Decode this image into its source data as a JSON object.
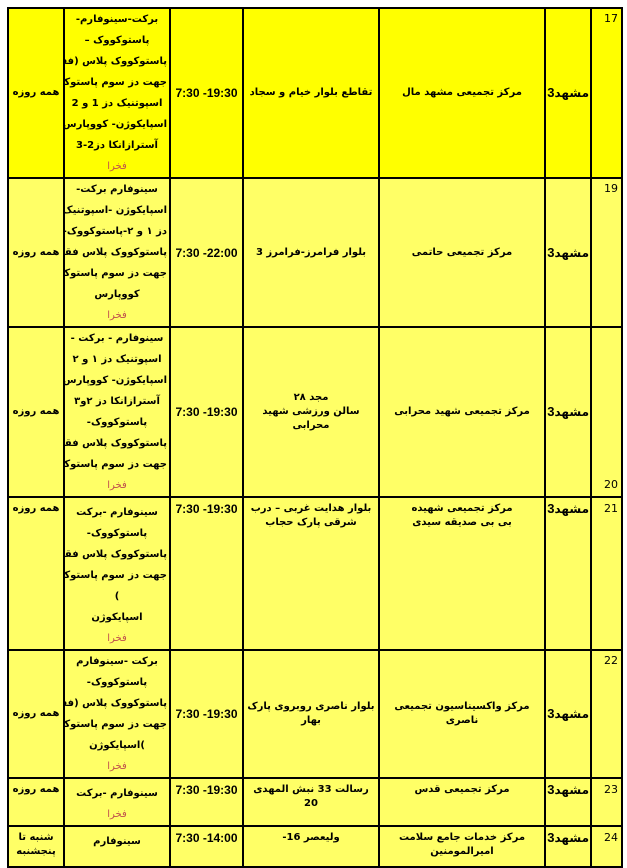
{
  "colors": {
    "header_row_bg": "#ffff00",
    "row_bg": "#ffff66",
    "border": "#000000",
    "highlight_text": "#c0504d"
  },
  "rows": [
    {
      "num": "17",
      "city": "مشهد",
      "city_num": "3",
      "center": [
        "مرکز تجمیعی مشهد مال"
      ],
      "address": [
        "تقاطع بلوار خیام و سجاد"
      ],
      "hours": "7:30 -19:30",
      "vaccines": [
        "برکت-سینوفارم-",
        "پاستوکووک –",
        "پاستوکووک پلاس (فقط",
        "جهت دز سوم پاستوکووک)",
        "اسپوتنیک دز 1 و 2",
        "اسپایکوژن- کووپارس",
        "آسترازانکا دز2-3"
      ],
      "vaccine_note": "فخرا",
      "days": "همه روزه"
    },
    {
      "num": "19",
      "city": "مشهد",
      "city_num": "3",
      "center": [
        "مرکز تجمیعی حاتمی"
      ],
      "address": [
        "بلوار فرامرز-فرامرز 3"
      ],
      "hours": "7:30 -22:00",
      "vaccines": [
        "سینوفارم برکت-",
        "اسپایکوژن -اسپوتنیک",
        "دز ۱ و ۲-پاستوکووک-",
        "پاستوکووک پلاس فقط",
        "جهت دز سوم پاستوکووک",
        "کووپارس"
      ],
      "vaccine_note": "فخرا",
      "days": "همه روزه"
    },
    {
      "num": "20",
      "city": "مشهد",
      "city_num": "3",
      "center": [
        "مرکز تجمیعی شهید محرابی"
      ],
      "address": [
        "مجد ۲۸",
        "سالن ورزشی شهید محرابی"
      ],
      "hours": "7:30 -19:30",
      "vaccines": [
        "سینوفارم - برکت -",
        "اسپوتنیک دز ۱ و ۲",
        "اسپایکوژن- کووپارس",
        "آسترازانکا دز ۲و۳",
        "پاستوکووک-",
        "پاستوکووک پلاس فقط",
        "جهت دز سوم پاستوکووک"
      ],
      "vaccine_note": "فخرا",
      "days": "همه روزه"
    },
    {
      "num": "21",
      "city": "مشهد",
      "city_num": "3",
      "center": [
        "مرکز تجمیعی شهیده",
        "بی بی صدیقه سیدی"
      ],
      "address": [
        "بلوار هدایت غربی – درب",
        "شرقی پارک حجاب"
      ],
      "hours": "7:30 -19:30",
      "vaccines": [
        "سینوفارم -برکت",
        "پاستوکووک-",
        "پاستوکووک پلاس فقط",
        "جهت دز سوم پاستوکووک",
        ")",
        "اسپایکوژن"
      ],
      "vaccine_note": "فخرا",
      "days": "همه روزه"
    },
    {
      "num": "22",
      "city": "مشهد",
      "city_num": "3",
      "center": [
        "مرکز واکسیناسیون تجمیعی ناصری"
      ],
      "address": [
        "بلوار ناصری روبروی پارک",
        "بهار"
      ],
      "hours": "7:30 -19:30",
      "vaccines": [
        "برکت -سینوفارم",
        "پاستوکووک-",
        "پاستوکووک پلاس (فقط",
        "جهت دز سوم پاستوکووک",
        ")اسپایکوژن"
      ],
      "vaccine_note": "فخرا",
      "days": "همه روزه"
    },
    {
      "num": "23",
      "city": "مشهد",
      "city_num": "3",
      "center": [
        "مرکز تجمیعی قدس"
      ],
      "address": [
        "رسالت 33 نبش المهدی 20"
      ],
      "hours": "7:30 -19:30",
      "vaccines": [
        "سینوفارم -برکت"
      ],
      "vaccine_note": "فخرا",
      "days": "همه روزه"
    },
    {
      "num": "24",
      "city": "مشهد",
      "city_num": "3",
      "center": [
        "مرکز  خدمات جامع سلامت امیرالمومنین"
      ],
      "address": [
        "ولیعصر 16-"
      ],
      "hours": "7:30 -14:00",
      "vaccines": [
        "سینوفارم"
      ],
      "vaccine_note": "",
      "days": "شنبه تا پنجشنبه"
    }
  ]
}
